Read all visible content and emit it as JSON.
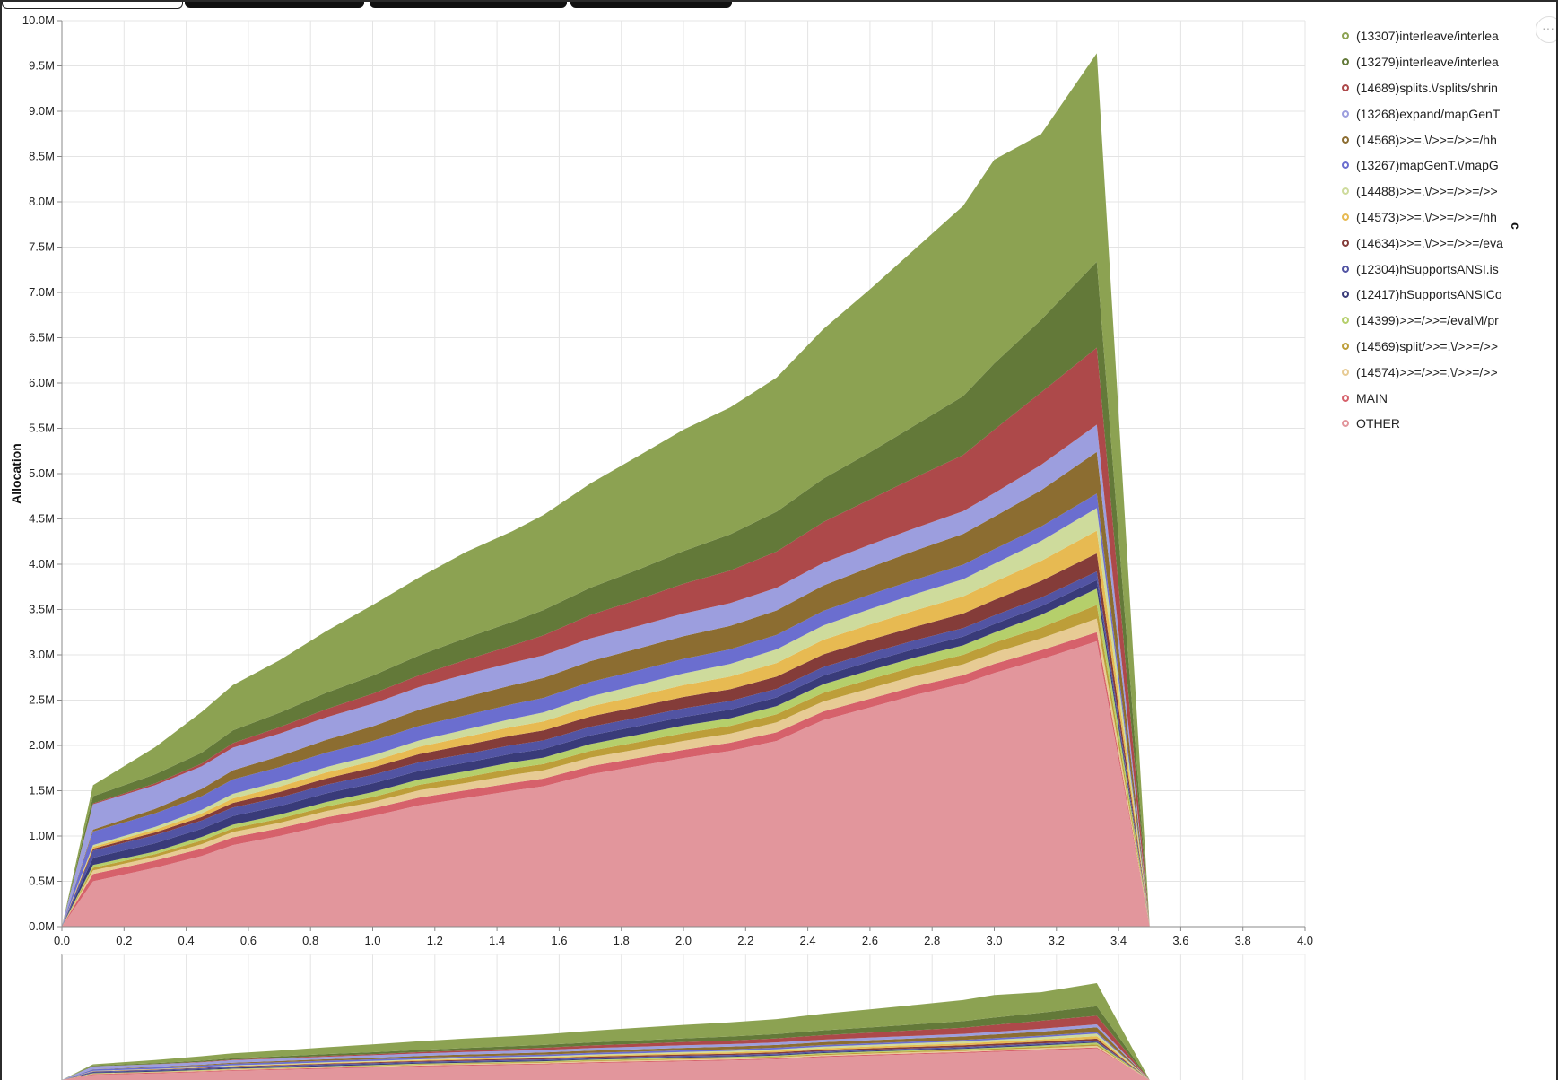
{
  "tabs": [
    {
      "label": "",
      "active": true
    },
    {
      "label": "",
      "active": false
    },
    {
      "label": "",
      "active": false
    },
    {
      "label": "",
      "active": false
    }
  ],
  "menu_button": {
    "icon": "more-horizontal-icon",
    "label": "···"
  },
  "stray_label": "c",
  "chart_data": [
    {
      "type": "area",
      "stacked": true,
      "title": "",
      "xlabel": "",
      "ylabel": "Allocation",
      "xlim": [
        0,
        4.0
      ],
      "ylim": [
        0,
        10000000
      ],
      "grid": true,
      "legend_position": "right",
      "x_ticks": [
        "0.0",
        "0.2",
        "0.4",
        "0.6",
        "0.8",
        "1.0",
        "1.2",
        "1.4",
        "1.6",
        "1.8",
        "2.0",
        "2.2",
        "2.4",
        "2.6",
        "2.8",
        "3.0",
        "3.2",
        "3.4",
        "3.6",
        "3.8",
        "4.0"
      ],
      "y_ticks": [
        "0.0M",
        "0.5M",
        "1.0M",
        "1.5M",
        "2.0M",
        "2.5M",
        "3.0M",
        "3.5M",
        "4.0M",
        "4.5M",
        "5.0M",
        "5.5M",
        "6.0M",
        "6.5M",
        "7.0M",
        "7.5M",
        "8.0M",
        "8.5M",
        "9.0M",
        "9.5M",
        "10.0M"
      ],
      "x": [
        0,
        0.1,
        0.3,
        0.45,
        0.55,
        0.7,
        0.85,
        1.0,
        1.15,
        1.3,
        1.45,
        1.55,
        1.7,
        1.85,
        2.0,
        2.15,
        2.3,
        2.45,
        2.6,
        2.75,
        2.9,
        3.0,
        3.15,
        3.33,
        3.5
      ],
      "series": [
        {
          "name": "OTHER",
          "color": "#e2969c",
          "values": [
            0,
            500000,
            650000,
            780000,
            900000,
            1000000,
            1120000,
            1220000,
            1340000,
            1420000,
            1500000,
            1550000,
            1680000,
            1770000,
            1860000,
            1940000,
            2050000,
            2280000,
            2420000,
            2560000,
            2680000,
            2800000,
            2950000,
            3150000,
            0
          ]
        },
        {
          "name": "MAIN",
          "color": "#d6616b",
          "values": [
            0,
            80000,
            80000,
            80000,
            85000,
            85000,
            85000,
            85000,
            85000,
            85000,
            85000,
            85000,
            90000,
            90000,
            90000,
            90000,
            95000,
            95000,
            95000,
            95000,
            95000,
            100000,
            100000,
            100000,
            0
          ]
        },
        {
          "name": "(14574)>>=/>>=.\\/>>=/>>",
          "color": "#e7cb94",
          "values": [
            0,
            40000,
            40000,
            50000,
            60000,
            60000,
            70000,
            70000,
            80000,
            80000,
            90000,
            90000,
            95000,
            95000,
            100000,
            100000,
            110000,
            110000,
            115000,
            120000,
            120000,
            125000,
            130000,
            150000,
            0
          ]
        },
        {
          "name": "(14569)split/>>=.\\/>>=/>>",
          "color": "#bd9e39",
          "values": [
            0,
            30000,
            30000,
            40000,
            40000,
            45000,
            50000,
            55000,
            60000,
            65000,
            70000,
            70000,
            75000,
            80000,
            85000,
            85000,
            90000,
            95000,
            100000,
            100000,
            105000,
            110000,
            120000,
            150000,
            0
          ]
        },
        {
          "name": "(14399)>>=/>>=/evalM/pr",
          "color": "#b5cf6b",
          "values": [
            0,
            30000,
            30000,
            40000,
            40000,
            45000,
            50000,
            55000,
            60000,
            65000,
            70000,
            70000,
            75000,
            80000,
            85000,
            85000,
            90000,
            95000,
            100000,
            100000,
            105000,
            110000,
            140000,
            180000,
            0
          ]
        },
        {
          "name": "(12417)hSupportsANSICo",
          "color": "#393b79",
          "values": [
            0,
            80000,
            90000,
            90000,
            95000,
            95000,
            95000,
            95000,
            95000,
            95000,
            95000,
            95000,
            95000,
            95000,
            95000,
            95000,
            95000,
            95000,
            95000,
            95000,
            95000,
            95000,
            95000,
            95000,
            0
          ]
        },
        {
          "name": "(12304)hSupportsANSI.is",
          "color": "#5254a3",
          "values": [
            0,
            80000,
            90000,
            90000,
            95000,
            95000,
            95000,
            95000,
            95000,
            95000,
            95000,
            95000,
            95000,
            95000,
            95000,
            95000,
            95000,
            95000,
            95000,
            95000,
            95000,
            95000,
            95000,
            95000,
            0
          ]
        },
        {
          "name": "(14634)>>=.\\/>>=/>>=/eva",
          "color": "#843c39",
          "values": [
            0,
            20000,
            30000,
            40000,
            50000,
            60000,
            70000,
            80000,
            90000,
            100000,
            105000,
            110000,
            115000,
            120000,
            125000,
            130000,
            135000,
            140000,
            145000,
            150000,
            160000,
            170000,
            185000,
            200000,
            0
          ]
        },
        {
          "name": "(14573)>>=.\\/>>=/>>=/hh",
          "color": "#e7ba52",
          "values": [
            0,
            20000,
            30000,
            40000,
            50000,
            60000,
            65000,
            70000,
            80000,
            90000,
            95000,
            100000,
            110000,
            120000,
            130000,
            140000,
            150000,
            160000,
            170000,
            180000,
            190000,
            200000,
            220000,
            250000,
            0
          ]
        },
        {
          "name": "(14488)>>=.\\/>>=/>>=/>>",
          "color": "#cedb9c",
          "values": [
            0,
            20000,
            30000,
            40000,
            50000,
            55000,
            60000,
            65000,
            70000,
            80000,
            90000,
            100000,
            110000,
            120000,
            130000,
            140000,
            150000,
            160000,
            170000,
            180000,
            190000,
            200000,
            220000,
            250000,
            0
          ]
        },
        {
          "name": "(13267)mapGenT.\\/mapG",
          "color": "#6b6ecf",
          "values": [
            0,
            150000,
            150000,
            150000,
            160000,
            160000,
            160000,
            160000,
            160000,
            160000,
            160000,
            160000,
            160000,
            160000,
            160000,
            160000,
            160000,
            160000,
            160000,
            160000,
            160000,
            160000,
            160000,
            160000,
            0
          ]
        },
        {
          "name": "(14568)>>=.\\/>>=/>>=/hh",
          "color": "#8c6d31",
          "values": [
            0,
            20000,
            50000,
            80000,
            100000,
            120000,
            140000,
            160000,
            180000,
            200000,
            210000,
            220000,
            230000,
            240000,
            250000,
            260000,
            270000,
            280000,
            300000,
            320000,
            340000,
            360000,
            400000,
            460000,
            0
          ]
        },
        {
          "name": "(13268)expand/mapGenT",
          "color": "#9c9ede",
          "values": [
            0,
            280000,
            260000,
            250000,
            250000,
            250000,
            250000,
            250000,
            250000,
            250000,
            250000,
            250000,
            250000,
            250000,
            250000,
            250000,
            250000,
            250000,
            250000,
            250000,
            250000,
            260000,
            280000,
            300000,
            0
          ]
        },
        {
          "name": "(14689)splits.\\/splits/shrin",
          "color": "#ad494a",
          "values": [
            0,
            10000,
            20000,
            30000,
            50000,
            70000,
            90000,
            110000,
            130000,
            160000,
            190000,
            220000,
            260000,
            290000,
            330000,
            360000,
            400000,
            450000,
            500000,
            560000,
            620000,
            700000,
            800000,
            850000,
            0
          ]
        },
        {
          "name": "(13279)interleave/interlea",
          "color": "#637939",
          "values": [
            0,
            80000,
            100000,
            120000,
            140000,
            160000,
            180000,
            200000,
            220000,
            240000,
            260000,
            280000,
            300000,
            330000,
            360000,
            400000,
            440000,
            480000,
            520000,
            580000,
            650000,
            730000,
            800000,
            950000,
            0
          ]
        },
        {
          "name": "(13307)interleave/interlea",
          "color": "#8ca252",
          "values": [
            0,
            120000,
            300000,
            450000,
            500000,
            580000,
            680000,
            780000,
            860000,
            950000,
            1000000,
            1050000,
            1150000,
            1250000,
            1340000,
            1400000,
            1480000,
            1650000,
            1800000,
            1950000,
            2100000,
            2250000,
            2050000,
            2300000,
            0
          ]
        }
      ]
    },
    {
      "type": "area",
      "stacked": true,
      "role": "overview",
      "xlim": [
        0,
        4.0
      ],
      "ylim": [
        0,
        10000000
      ],
      "grid": true
    }
  ]
}
